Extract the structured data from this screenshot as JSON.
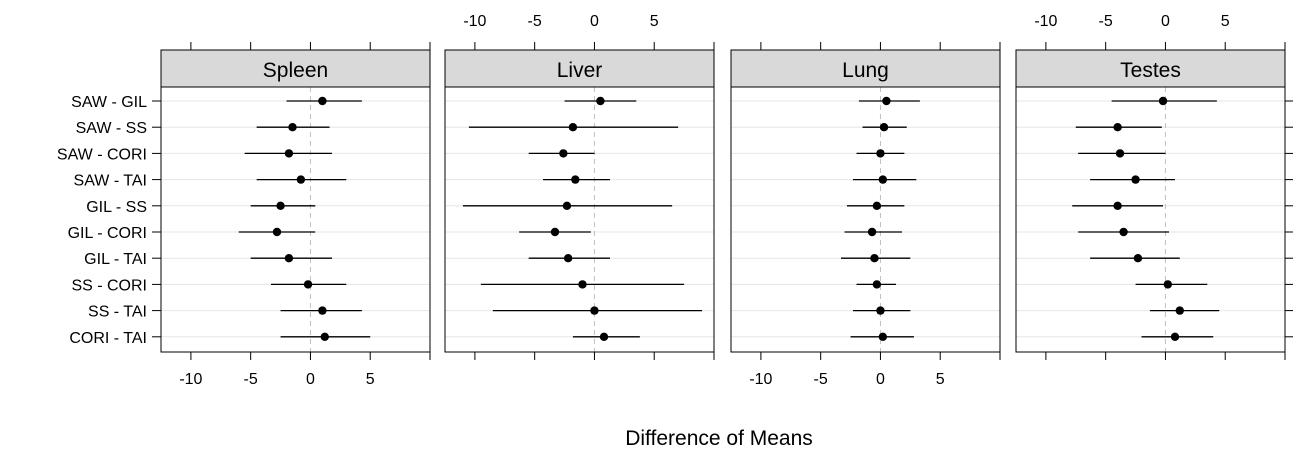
{
  "chart_data": {
    "type": "scatter",
    "chart_style": "dot-plot with horizontal confidence-interval bars, multi-panel (lattice)",
    "xlabel": "Difference of Means",
    "x_ticks": [
      -10,
      -5,
      0,
      5
    ],
    "xlim": [
      -12.5,
      10
    ],
    "reference_line": 0,
    "grid": "horizontal light gridlines at each comparison; dashed vertical line at 0",
    "categories": [
      "SAW - GIL",
      "SAW - SS",
      "SAW - CORI",
      "SAW - TAI",
      "GIL - SS",
      "GIL - CORI",
      "GIL - TAI",
      "SS - CORI",
      "SS - TAI",
      "CORI - TAI"
    ],
    "panels": [
      {
        "name": "Spleen",
        "estimate": [
          1.0,
          -1.5,
          -1.8,
          -0.8,
          -2.5,
          -2.8,
          -1.8,
          -0.2,
          1.0,
          1.2
        ],
        "lower": [
          -2.0,
          -4.5,
          -5.5,
          -4.5,
          -5.0,
          -6.0,
          -5.0,
          -3.3,
          -2.5,
          -2.5
        ],
        "upper": [
          4.3,
          1.6,
          1.8,
          3.0,
          0.4,
          0.4,
          1.8,
          3.0,
          4.3,
          5.0
        ]
      },
      {
        "name": "Liver",
        "estimate": [
          0.5,
          -1.8,
          -2.6,
          -1.6,
          -2.3,
          -3.3,
          -2.2,
          -1.0,
          0.0,
          0.8
        ],
        "lower": [
          -2.5,
          -10.5,
          -5.5,
          -4.3,
          -11.0,
          -6.3,
          -5.5,
          -9.5,
          -8.5,
          -1.8
        ],
        "upper": [
          3.5,
          7.0,
          0.0,
          1.3,
          6.5,
          -0.3,
          1.3,
          7.5,
          9.0,
          3.8
        ]
      },
      {
        "name": "Lung",
        "estimate": [
          0.5,
          0.3,
          0.0,
          0.2,
          -0.3,
          -0.7,
          -0.5,
          -0.3,
          0.0,
          0.2
        ],
        "lower": [
          -1.8,
          -1.5,
          -2.0,
          -2.3,
          -2.8,
          -3.0,
          -3.3,
          -2.0,
          -2.3,
          -2.5
        ],
        "upper": [
          3.3,
          2.2,
          2.0,
          3.0,
          2.0,
          1.8,
          2.5,
          1.3,
          2.5,
          2.8
        ]
      },
      {
        "name": "Testes",
        "estimate": [
          -0.2,
          -4.0,
          -3.8,
          -2.5,
          -4.0,
          -3.5,
          -2.3,
          0.2,
          1.2,
          0.8
        ],
        "lower": [
          -4.5,
          -7.5,
          -7.3,
          -6.3,
          -7.8,
          -7.3,
          -6.3,
          -2.5,
          -1.3,
          -2.0
        ],
        "upper": [
          4.3,
          -0.3,
          0.0,
          0.8,
          -0.2,
          0.3,
          1.2,
          3.5,
          4.5,
          4.0
        ]
      }
    ]
  }
}
